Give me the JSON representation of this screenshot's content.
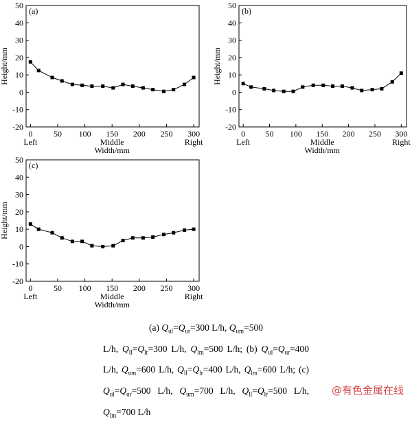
{
  "chart_data": [
    {
      "panel_label": "(a)",
      "type": "line",
      "xlabel": "Width/mm",
      "ylabel": "Height/mm",
      "xlim": [
        -8,
        310
      ],
      "ylim": [
        -20,
        50
      ],
      "xticks": [
        0,
        50,
        100,
        150,
        200,
        250,
        300
      ],
      "yticks": [
        -20,
        -10,
        0,
        10,
        20,
        30,
        40,
        50
      ],
      "position_labels": {
        "left": "Left",
        "middle": "Middle",
        "right": "Right"
      },
      "x": [
        0,
        15,
        40,
        58,
        77,
        95,
        113,
        133,
        152,
        170,
        188,
        207,
        225,
        245,
        263,
        283,
        300
      ],
      "y": [
        17.5,
        12.5,
        8.5,
        6.5,
        4.5,
        4,
        3.5,
        3.5,
        2.5,
        4.5,
        3.5,
        2.5,
        1.5,
        0.5,
        1.5,
        4.5,
        8.5
      ]
    },
    {
      "panel_label": "(b)",
      "type": "line",
      "xlabel": "Width/mm",
      "ylabel": "Height/mm",
      "xlim": [
        -8,
        310
      ],
      "ylim": [
        -20,
        50
      ],
      "xticks": [
        0,
        50,
        100,
        150,
        200,
        250,
        300
      ],
      "yticks": [
        -20,
        -10,
        0,
        10,
        20,
        30,
        40,
        50
      ],
      "position_labels": {
        "left": "Left",
        "middle": "Middle",
        "right": "Right"
      },
      "x": [
        0,
        15,
        40,
        58,
        77,
        95,
        113,
        133,
        152,
        170,
        188,
        207,
        225,
        245,
        263,
        283,
        300
      ],
      "y": [
        5,
        3,
        2,
        1,
        0.5,
        0.5,
        3,
        4,
        4,
        3.5,
        3.5,
        2.5,
        1,
        1.5,
        2,
        6,
        11
      ]
    },
    {
      "panel_label": "(c)",
      "type": "line",
      "xlabel": "Width/mm",
      "ylabel": "Height/mm",
      "xlim": [
        -8,
        310
      ],
      "ylim": [
        -20,
        50
      ],
      "xticks": [
        0,
        50,
        100,
        150,
        200,
        250,
        300
      ],
      "yticks": [
        -20,
        -10,
        0,
        10,
        20,
        30,
        40,
        50
      ],
      "position_labels": {
        "left": "Left",
        "middle": "Middle",
        "right": "Right"
      },
      "x": [
        0,
        15,
        40,
        58,
        77,
        95,
        113,
        133,
        152,
        170,
        188,
        207,
        225,
        245,
        263,
        283,
        300
      ],
      "y": [
        13,
        10,
        8,
        5,
        3,
        3,
        0.5,
        0,
        0.5,
        3.5,
        5,
        5,
        5.5,
        7,
        8,
        9.5,
        10
      ]
    }
  ],
  "caption": {
    "a_prefix": "(a) ",
    "b_prefix": "; (b) ",
    "c_prefix": "; (c) ",
    "eq": "=",
    "flow_unit": " L/h",
    "sep": ", ",
    "Q": "Q",
    "sub_ul": "ul",
    "sub_ur": "ur",
    "sub_um": "um",
    "sub_ll": "ll",
    "sub_lr": "lr",
    "sub_lm": "lm",
    "a_vals": {
      "ul_ur": "300",
      "um": "500",
      "ll_lr": "300",
      "lm": "500"
    },
    "b_vals": {
      "ul_ur": "400",
      "um": "600",
      "ll_lr": "400",
      "lm": "600"
    },
    "c_vals": {
      "ul_ur": "500",
      "um": "700",
      "ll_lr": "500",
      "lm": "700"
    }
  },
  "watermark": "@有色金属在线"
}
